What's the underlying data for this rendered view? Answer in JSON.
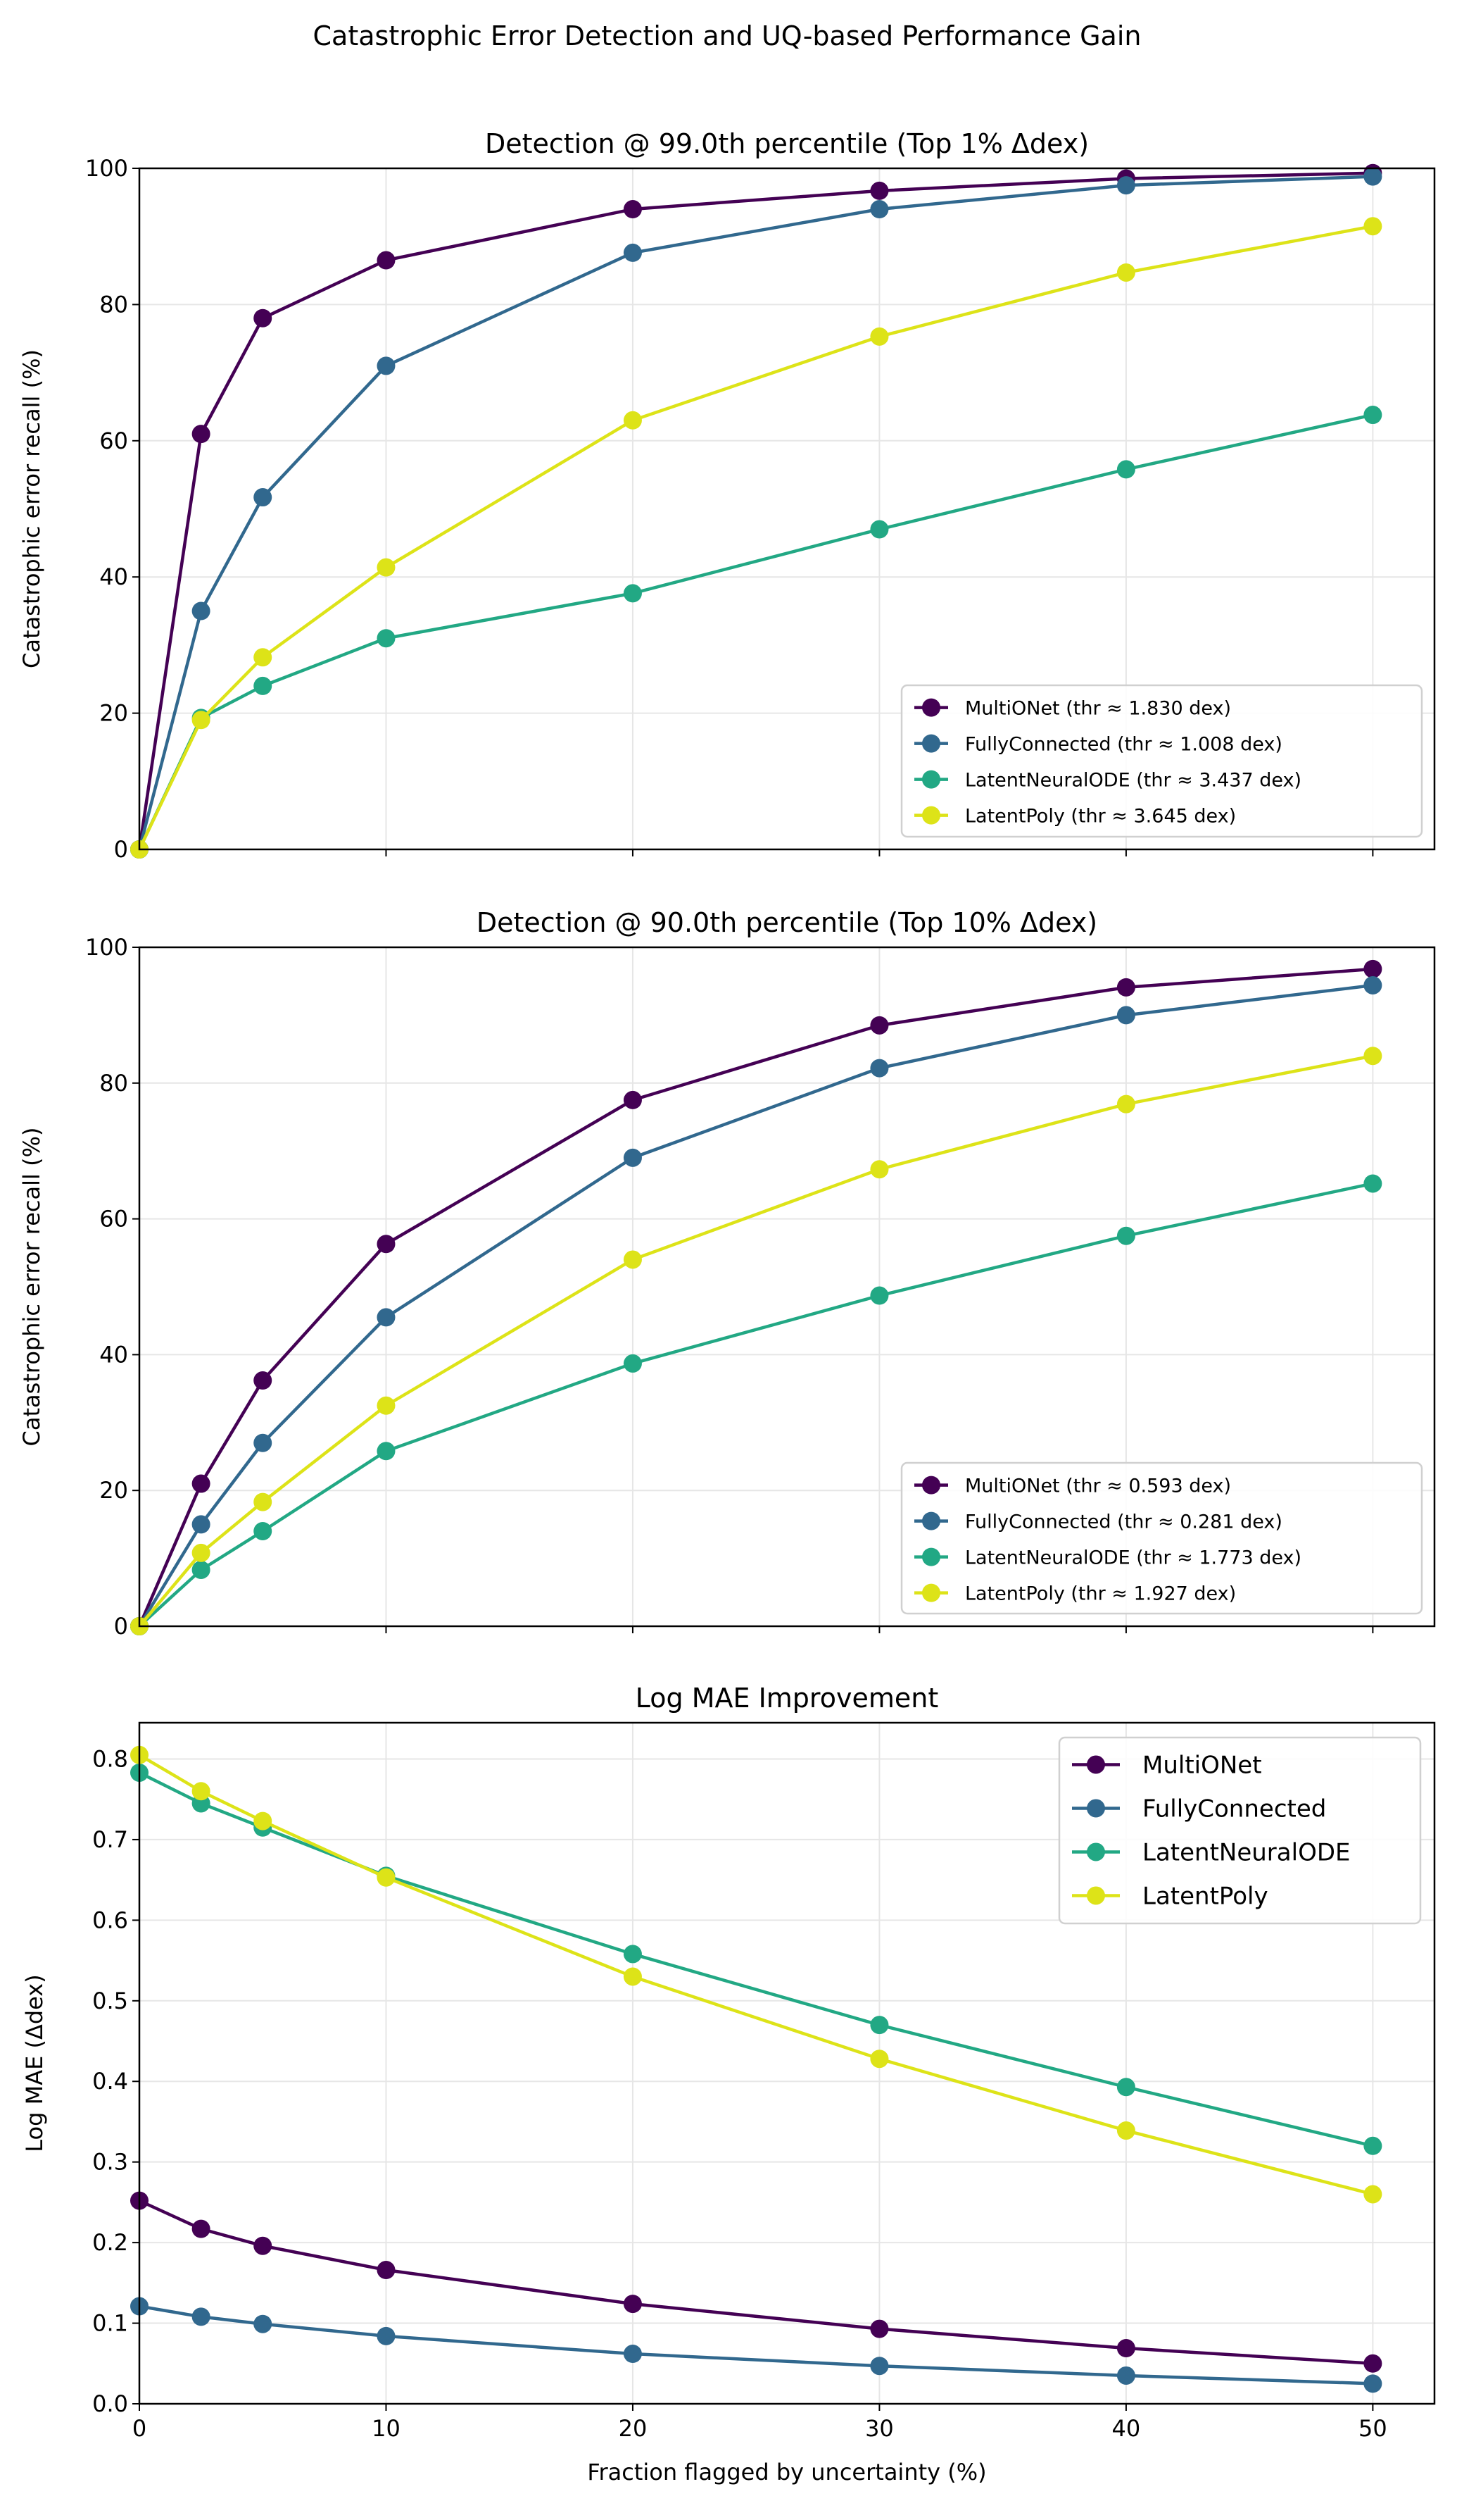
{
  "figure_title": "Catastrophic Error Detection and UQ-based Performance Gain",
  "colors": {
    "MultiONet": "#440154",
    "FullyConnected": "#31688e",
    "LatentNeuralODE": "#22a884",
    "LatentPoly": "#dde318"
  },
  "chart_data": [
    {
      "type": "line",
      "title": "Detection @ 99.0th percentile (Top 1% Δdex)",
      "xlabel": "",
      "ylabel": "Catastrophic error recall (%)",
      "x": [
        0,
        2.5,
        5,
        10,
        20,
        30,
        40,
        50
      ],
      "xlim": [
        0,
        52.5
      ],
      "ylim": [
        0,
        100
      ],
      "xticks": [
        0,
        10,
        20,
        30,
        40,
        50
      ],
      "xtick_labels_shown": false,
      "yticks": [
        0,
        20,
        40,
        60,
        80,
        100
      ],
      "grid": true,
      "legend_placement": "lower-right",
      "series": [
        {
          "name": "MultiONet (thr ≈ 1.830 dex)",
          "key": "MultiONet",
          "values": [
            0,
            61,
            78,
            86.5,
            94,
            96.7,
            98.5,
            99.3
          ]
        },
        {
          "name": "FullyConnected (thr ≈ 1.008 dex)",
          "key": "FullyConnected",
          "values": [
            0,
            35,
            51.7,
            71,
            87.6,
            94,
            97.5,
            98.8
          ]
        },
        {
          "name": "LatentNeuralODE (thr ≈ 3.437 dex)",
          "key": "LatentNeuralODE",
          "values": [
            0,
            19.3,
            24,
            31,
            37.6,
            47,
            55.8,
            63.8
          ]
        },
        {
          "name": "LatentPoly (thr ≈ 3.645 dex)",
          "key": "LatentPoly",
          "values": [
            0,
            19,
            28.2,
            41.4,
            63,
            75.3,
            84.7,
            91.5
          ]
        }
      ]
    },
    {
      "type": "line",
      "title": "Detection @ 90.0th percentile (Top 10% Δdex)",
      "xlabel": "",
      "ylabel": "Catastrophic error recall (%)",
      "x": [
        0,
        2.5,
        5,
        10,
        20,
        30,
        40,
        50
      ],
      "xlim": [
        0,
        52.5
      ],
      "ylim": [
        0,
        100
      ],
      "xticks": [
        0,
        10,
        20,
        30,
        40,
        50
      ],
      "xtick_labels_shown": false,
      "yticks": [
        0,
        20,
        40,
        60,
        80,
        100
      ],
      "grid": true,
      "legend_placement": "lower-right",
      "series": [
        {
          "name": "MultiONet (thr ≈ 0.593 dex)",
          "key": "MultiONet",
          "values": [
            0,
            21,
            36.2,
            56.3,
            77.5,
            88.5,
            94.1,
            96.8
          ]
        },
        {
          "name": "FullyConnected (thr ≈ 0.281 dex)",
          "key": "FullyConnected",
          "values": [
            0,
            15,
            27,
            45.5,
            69,
            82.2,
            90,
            94.4
          ]
        },
        {
          "name": "LatentNeuralODE (thr ≈ 1.773 dex)",
          "key": "LatentNeuralODE",
          "values": [
            0,
            8.3,
            14,
            25.8,
            38.7,
            48.7,
            57.5,
            65.2
          ]
        },
        {
          "name": "LatentPoly (thr ≈ 1.927 dex)",
          "key": "LatentPoly",
          "values": [
            0,
            10.8,
            18.3,
            32.5,
            54,
            67.3,
            76.9,
            84
          ]
        }
      ]
    },
    {
      "type": "line",
      "title": "Log MAE Improvement",
      "xlabel": "Fraction flagged by uncertainty (%)",
      "ylabel": "Log MAE (Δdex)",
      "x": [
        0,
        2.5,
        5,
        10,
        20,
        30,
        40,
        50
      ],
      "xlim": [
        0,
        52.5
      ],
      "ylim": [
        0,
        0.845
      ],
      "xticks": [
        0,
        10,
        20,
        30,
        40,
        50
      ],
      "xtick_labels_shown": true,
      "yticks": [
        0.0,
        0.1,
        0.2,
        0.3,
        0.4,
        0.5,
        0.6,
        0.7,
        0.8
      ],
      "grid": true,
      "legend_placement": "upper-right",
      "series": [
        {
          "name": "MultiONet",
          "key": "MultiONet",
          "values": [
            0.252,
            0.217,
            0.196,
            0.166,
            0.124,
            0.093,
            0.069,
            0.05
          ]
        },
        {
          "name": "FullyConnected",
          "key": "FullyConnected",
          "values": [
            0.121,
            0.108,
            0.099,
            0.084,
            0.062,
            0.047,
            0.035,
            0.025
          ]
        },
        {
          "name": "LatentNeuralODE",
          "key": "LatentNeuralODE",
          "values": [
            0.783,
            0.745,
            0.715,
            0.655,
            0.558,
            0.47,
            0.393,
            0.32
          ]
        },
        {
          "name": "LatentPoly",
          "key": "LatentPoly",
          "values": [
            0.805,
            0.76,
            0.723,
            0.653,
            0.53,
            0.428,
            0.339,
            0.26
          ]
        }
      ]
    }
  ]
}
